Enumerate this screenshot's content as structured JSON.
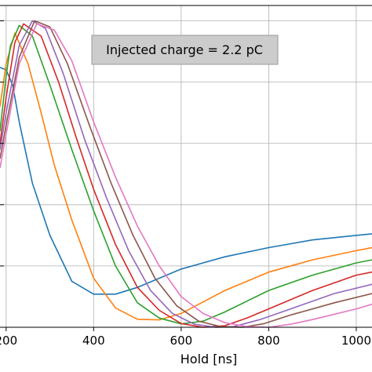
{
  "chart_data": {
    "type": "line",
    "xlabel": "Hold [ns]",
    "xlim": [
      186,
      1036
    ],
    "ylim": [
      0.0,
      1.05
    ],
    "xticks": [
      200,
      400,
      600,
      800,
      1000
    ],
    "xtick_labels": [
      "200",
      "400",
      "600",
      "800",
      "1000"
    ],
    "yticks": [
      0.0,
      0.2,
      0.4,
      0.6,
      0.8,
      1.0
    ],
    "grid": true,
    "annotation": "Injected charge = 2.2 pC",
    "colors": [
      "#1f77b4",
      "#ff7f0e",
      "#2ca02c",
      "#d62728",
      "#9467bd",
      "#8c564b",
      "#e377c2"
    ],
    "series": [
      {
        "x": [
          186,
          200,
          215,
          230,
          260,
          300,
          350,
          400,
          450,
          500,
          600,
          700,
          800,
          900,
          1000,
          1036
        ],
        "y": [
          0.848,
          0.84,
          0.79,
          0.67,
          0.47,
          0.3,
          0.15,
          0.108,
          0.108,
          0.13,
          0.19,
          0.23,
          0.26,
          0.285,
          0.3,
          0.305
        ]
      },
      {
        "x": [
          186,
          200,
          220,
          250,
          280,
          310,
          350,
          400,
          450,
          500,
          550,
          600,
          700,
          800,
          900,
          1000,
          1036
        ],
        "y": [
          0.72,
          0.86,
          0.96,
          0.86,
          0.7,
          0.53,
          0.35,
          0.16,
          0.063,
          0.026,
          0.024,
          0.045,
          0.12,
          0.18,
          0.22,
          0.25,
          0.26
        ]
      },
      {
        "x": [
          186,
          200,
          210,
          230,
          260,
          300,
          350,
          400,
          450,
          500,
          550,
          600,
          650,
          700,
          800,
          900,
          1000,
          1036
        ],
        "y": [
          0.64,
          0.82,
          0.92,
          0.985,
          0.95,
          0.79,
          0.58,
          0.38,
          0.2,
          0.08,
          0.03,
          0.011,
          0.02,
          0.05,
          0.12,
          0.17,
          0.21,
          0.22
        ]
      },
      {
        "x": [
          186,
          200,
          220,
          240,
          280,
          320,
          360,
          400,
          450,
          500,
          550,
          600,
          650,
          700,
          750,
          800,
          900,
          1000,
          1036
        ],
        "y": [
          0.6,
          0.75,
          0.93,
          0.99,
          0.95,
          0.8,
          0.62,
          0.45,
          0.27,
          0.13,
          0.055,
          0.012,
          0.0,
          0.005,
          0.03,
          0.06,
          0.12,
          0.17,
          0.18
        ]
      },
      {
        "x": [
          186,
          200,
          230,
          260,
          290,
          330,
          380,
          430,
          480,
          530,
          580,
          630,
          680,
          720,
          780,
          850,
          950,
          1036
        ],
        "y": [
          0.58,
          0.7,
          0.92,
          1.0,
          0.975,
          0.83,
          0.61,
          0.42,
          0.25,
          0.12,
          0.045,
          0.01,
          0.0,
          0.002,
          0.025,
          0.06,
          0.11,
          0.14
        ]
      },
      {
        "x": [
          186,
          200,
          230,
          265,
          300,
          340,
          390,
          440,
          490,
          540,
          590,
          640,
          690,
          740,
          790,
          850,
          950,
          1036
        ],
        "y": [
          0.55,
          0.66,
          0.88,
          1.0,
          0.98,
          0.86,
          0.66,
          0.47,
          0.3,
          0.16,
          0.07,
          0.02,
          0.002,
          0.0,
          0.012,
          0.04,
          0.08,
          0.11
        ]
      },
      {
        "x": [
          186,
          200,
          230,
          270,
          310,
          350,
          400,
          450,
          500,
          550,
          600,
          650,
          700,
          750,
          800,
          850,
          900,
          1000,
          1036
        ],
        "y": [
          0.52,
          0.63,
          0.86,
          0.99,
          0.97,
          0.87,
          0.67,
          0.49,
          0.33,
          0.2,
          0.1,
          0.045,
          0.015,
          0.002,
          0.0,
          0.01,
          0.025,
          0.06,
          0.075
        ]
      }
    ]
  }
}
